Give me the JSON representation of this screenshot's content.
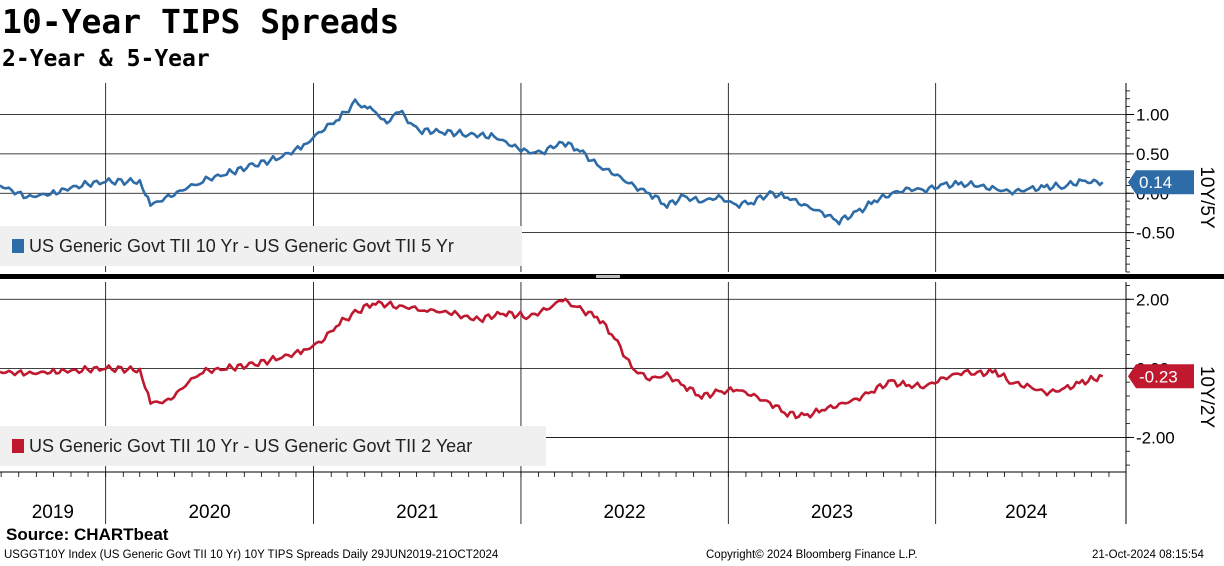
{
  "header": {
    "title": "10-Year TIPS Spreads",
    "subtitle": "2-Year & 5-Year"
  },
  "footer": {
    "source": "Source: CHARTbeat",
    "description": "USGGT10Y Index (US Generic Govt TII 10 Yr) 10Y TIPS Spreads  Daily 29JUN2019-21OCT2024",
    "copyright": "Copyright© 2024 Bloomberg Finance L.P.",
    "timestamp": "21-Oct-2024 08:15:54"
  },
  "chart_data": [
    {
      "type": "line",
      "axis_title": "10Y/5Y",
      "axis_side": "right",
      "ylim": [
        -1.0,
        1.4
      ],
      "y_ticks": [
        1.0,
        0.5,
        0.0,
        -0.5
      ],
      "y_tick_labels": [
        "1.00",
        "0.50",
        "0.00",
        "-0.50"
      ],
      "last_value_label": "0.14",
      "grid": true,
      "legend_position": "bottom-left",
      "series": [
        {
          "name": "US Generic Govt TII 10 Yr - US Generic Govt TII 5 Yr",
          "color": "#2e6ca8",
          "x": [
            "2019-06-29",
            "2019-08-15",
            "2019-10-01",
            "2019-11-15",
            "2020-01-01",
            "2020-03-01",
            "2020-03-20",
            "2020-04-20",
            "2020-06-15",
            "2020-08-01",
            "2020-09-15",
            "2020-11-01",
            "2020-12-15",
            "2021-01-15",
            "2021-02-15",
            "2021-03-15",
            "2021-04-01",
            "2021-04-15",
            "2021-05-10",
            "2021-06-01",
            "2021-07-01",
            "2021-08-15",
            "2021-10-01",
            "2021-11-15",
            "2022-01-01",
            "2022-02-01",
            "2022-03-15",
            "2022-04-15",
            "2022-05-15",
            "2022-06-15",
            "2022-07-15",
            "2022-08-15",
            "2022-09-15",
            "2022-10-15",
            "2022-11-15",
            "2022-12-15",
            "2023-01-15",
            "2023-02-15",
            "2023-03-15",
            "2023-04-15",
            "2023-05-15",
            "2023-06-15",
            "2023-07-15",
            "2023-08-15",
            "2023-09-15",
            "2023-10-15",
            "2023-11-15",
            "2023-12-15",
            "2024-01-15",
            "2024-02-15",
            "2024-03-15",
            "2024-04-15",
            "2024-05-15",
            "2024-06-15",
            "2024-07-15",
            "2024-08-15",
            "2024-09-15",
            "2024-10-21"
          ],
          "values": [
            0.1,
            -0.05,
            0.0,
            0.1,
            0.15,
            0.15,
            -0.15,
            -0.05,
            0.15,
            0.25,
            0.35,
            0.45,
            0.6,
            0.8,
            0.95,
            1.15,
            1.12,
            1.05,
            0.9,
            1.05,
            0.8,
            0.78,
            0.75,
            0.72,
            0.55,
            0.5,
            0.65,
            0.55,
            0.35,
            0.25,
            0.1,
            0.0,
            -0.15,
            -0.05,
            -0.1,
            -0.05,
            -0.15,
            -0.1,
            0.0,
            -0.05,
            -0.15,
            -0.25,
            -0.35,
            -0.25,
            -0.1,
            0.0,
            0.05,
            0.05,
            0.1,
            0.12,
            0.1,
            0.05,
            0.02,
            0.05,
            0.08,
            0.1,
            0.15,
            0.14
          ]
        }
      ]
    },
    {
      "type": "line",
      "axis_title": "10Y/2Y",
      "axis_side": "right",
      "ylim": [
        -3.0,
        2.5
      ],
      "y_ticks": [
        2.0,
        0.0,
        -2.0
      ],
      "y_tick_labels": [
        "2.00",
        "0.00",
        "-2.00"
      ],
      "last_value_label": "-0.23",
      "grid": true,
      "legend_position": "bottom-left",
      "series": [
        {
          "name": "US Generic Govt TII 10 Yr - US Generic Govt TII 2 Year",
          "color": "#c0192f",
          "x": [
            "2019-06-29",
            "2019-08-15",
            "2019-10-01",
            "2019-11-15",
            "2020-01-01",
            "2020-03-01",
            "2020-03-20",
            "2020-04-20",
            "2020-06-15",
            "2020-08-01",
            "2020-09-15",
            "2020-11-01",
            "2020-12-15",
            "2021-01-15",
            "2021-02-15",
            "2021-03-15",
            "2021-04-15",
            "2021-06-01",
            "2021-07-15",
            "2021-09-01",
            "2021-10-15",
            "2021-12-01",
            "2022-01-15",
            "2022-02-15",
            "2022-03-15",
            "2022-04-15",
            "2022-05-15",
            "2022-06-15",
            "2022-07-15",
            "2022-08-15",
            "2022-09-15",
            "2022-10-15",
            "2022-11-15",
            "2022-12-15",
            "2023-01-15",
            "2023-02-15",
            "2023-03-15",
            "2023-04-15",
            "2023-05-15",
            "2023-06-15",
            "2023-07-15",
            "2023-08-15",
            "2023-09-15",
            "2023-10-15",
            "2023-11-15",
            "2023-12-15",
            "2024-01-15",
            "2024-02-15",
            "2024-03-15",
            "2024-04-15",
            "2024-05-15",
            "2024-06-15",
            "2024-07-15",
            "2024-08-15",
            "2024-09-15",
            "2024-10-21"
          ],
          "values": [
            -0.1,
            -0.15,
            -0.1,
            -0.05,
            0.0,
            -0.05,
            -1.0,
            -0.95,
            -0.1,
            0.0,
            0.1,
            0.3,
            0.5,
            0.8,
            1.3,
            1.6,
            1.9,
            1.8,
            1.7,
            1.6,
            1.4,
            1.6,
            1.5,
            1.7,
            2.0,
            1.7,
            1.5,
            0.9,
            0.0,
            -0.3,
            -0.2,
            -0.5,
            -0.8,
            -0.7,
            -0.6,
            -0.8,
            -1.0,
            -1.3,
            -1.4,
            -1.2,
            -1.05,
            -0.9,
            -0.6,
            -0.4,
            -0.5,
            -0.5,
            -0.3,
            -0.1,
            -0.15,
            -0.1,
            -0.4,
            -0.55,
            -0.7,
            -0.6,
            -0.4,
            -0.23
          ]
        }
      ]
    }
  ],
  "x_axis": {
    "year_labels": [
      "2019",
      "2020",
      "2021",
      "2022",
      "2023",
      "2024"
    ],
    "year_ticks": [
      "2019-06-29",
      "2020-01-01",
      "2021-01-01",
      "2022-01-01",
      "2023-01-01",
      "2024-01-01",
      "2024-11-15"
    ],
    "xlim": [
      "2019-06-29",
      "2024-12-01"
    ]
  }
}
